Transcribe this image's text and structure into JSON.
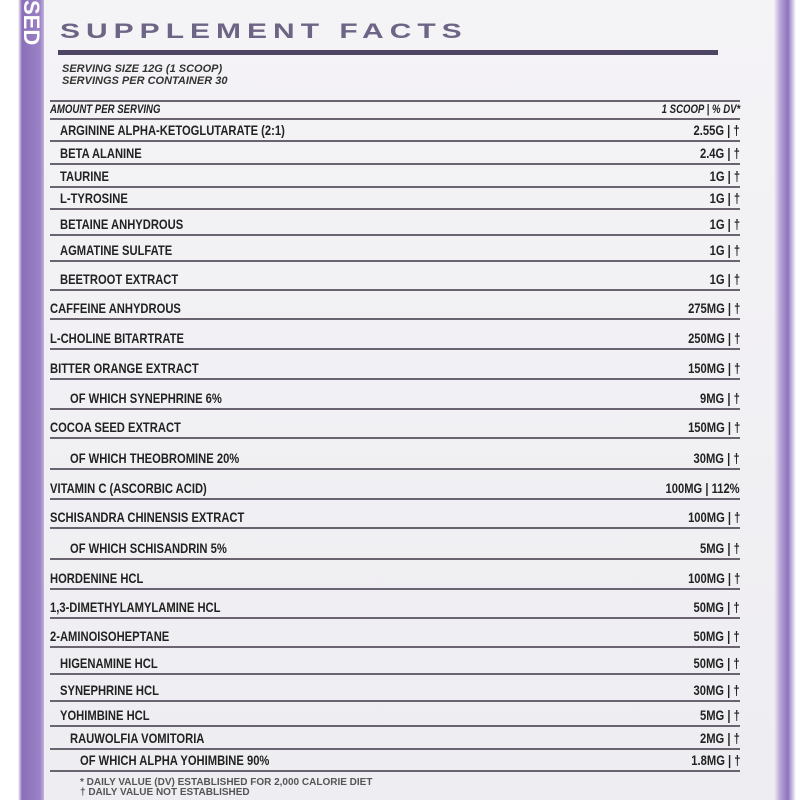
{
  "side_text": "SED",
  "title": "SUPPLEMENT FACTS",
  "serving_size": "SERVING SIZE 12G (1 SCOOP)",
  "servings_per_container": "SERVINGS PER CONTAINER 30",
  "header": {
    "name": "AMOUNT PER SERVING",
    "amount": "1 SCOOP | % DV*"
  },
  "ingredients": [
    {
      "name": "ARGININE ALPHA-KETOGLUTARATE (2:1)",
      "amount": "2.55G | †",
      "indent": 1
    },
    {
      "name": "BETA ALANINE",
      "amount": "2.4G | †",
      "indent": 1
    },
    {
      "name": "TAURINE",
      "amount": "1G | †",
      "indent": 1
    },
    {
      "name": "L-TYROSINE",
      "amount": "1G | †",
      "indent": 1
    },
    {
      "name": "BETAINE ANHYDROUS",
      "amount": "1G | †",
      "indent": 1
    },
    {
      "name": "AGMATINE SULFATE",
      "amount": "1G | †",
      "indent": 1
    },
    {
      "name": "BEETROOT EXTRACT",
      "amount": "1G | †",
      "indent": 1
    },
    {
      "name": "CAFFEINE ANHYDROUS",
      "amount": "275MG | †",
      "indent": 0
    },
    {
      "name": "L-CHOLINE BITARTRATE",
      "amount": "250MG | †",
      "indent": 0
    },
    {
      "name": "BITTER ORANGE EXTRACT",
      "amount": "150MG | †",
      "indent": 0
    },
    {
      "name": "OF WHICH SYNEPHRINE 6%",
      "amount": "9MG | †",
      "indent": 2
    },
    {
      "name": "COCOA SEED EXTRACT",
      "amount": "150MG | †",
      "indent": 0
    },
    {
      "name": "OF WHICH THEOBROMINE 20%",
      "amount": "30MG | †",
      "indent": 2
    },
    {
      "name": "VITAMIN C (ASCORBIC ACID)",
      "amount": "100MG | 112%",
      "indent": 0
    },
    {
      "name": "SCHISANDRA CHINENSIS EXTRACT",
      "amount": "100MG | †",
      "indent": 0
    },
    {
      "name": "OF WHICH SCHISANDRIN 5%",
      "amount": "5MG | †",
      "indent": 2
    },
    {
      "name": "HORDENINE HCL",
      "amount": "100MG | †",
      "indent": 0
    },
    {
      "name": "1,3-DIMETHYLAMYLAMINE HCL",
      "amount": "50MG | †",
      "indent": 0
    },
    {
      "name": "2-AMINOISOHEPTANE",
      "amount": "50MG | †",
      "indent": 0
    },
    {
      "name": "HIGENAMINE HCL",
      "amount": "50MG | †",
      "indent": 1
    },
    {
      "name": "SYNEPHRINE HCL",
      "amount": "30MG | †",
      "indent": 1
    },
    {
      "name": "YOHIMBINE HCL",
      "amount": "5MG | †",
      "indent": 1
    },
    {
      "name": "RAUWOLFIA VOMITORIA",
      "amount": "2MG | †",
      "indent": 2
    },
    {
      "name": "OF WHICH ALPHA YOHIMBINE 90%",
      "amount": "1.8MG | †",
      "indent": 3
    }
  ],
  "footnotes": [
    "* DAILY VALUE (DV) ESTABLISHED FOR 2,000 CALORIE DIET",
    "† DAILY VALUE NOT ESTABLISHED"
  ],
  "colors": {
    "accent_purple": "#8a6fb8",
    "title": "#6e6586",
    "rule": "#4d4563"
  }
}
